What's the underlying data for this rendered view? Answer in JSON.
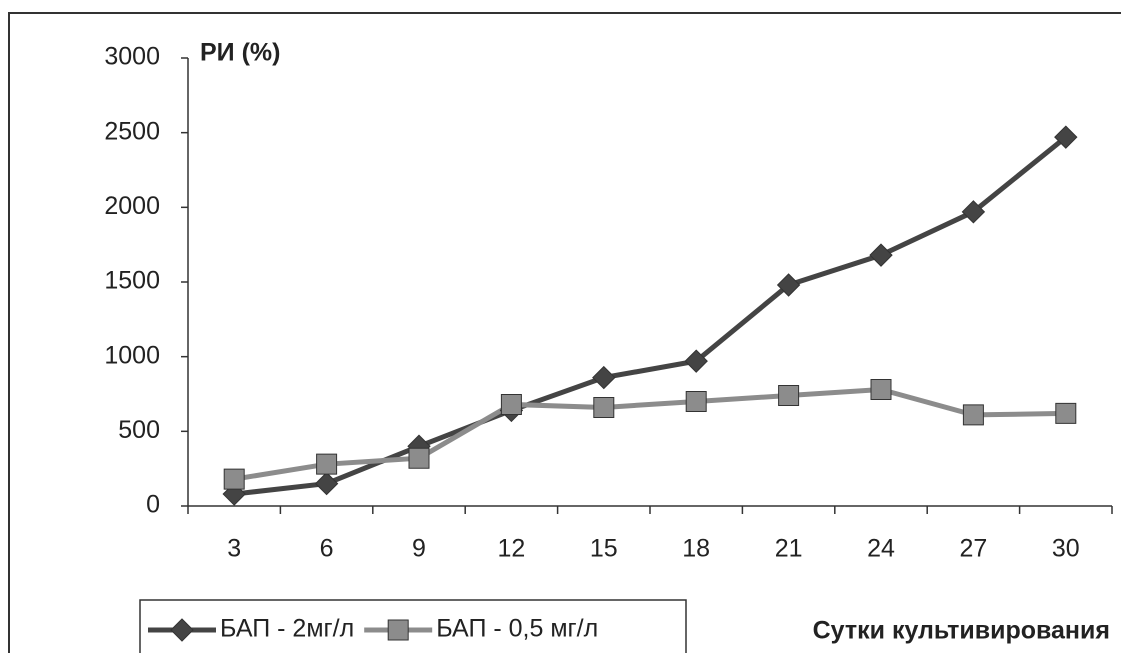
{
  "chart_data": {
    "type": "line",
    "y_label": "РИ (%)",
    "x_label": "Сутки культивирования",
    "categories": [
      "3",
      "6",
      "9",
      "12",
      "15",
      "18",
      "21",
      "24",
      "27",
      "30"
    ],
    "series": [
      {
        "name": "БАП - 2мг/л",
        "color": "#444444",
        "marker": "diamond",
        "values": [
          80,
          150,
          400,
          640,
          860,
          970,
          1480,
          1680,
          1970,
          2470
        ]
      },
      {
        "name": "БАП - 0,5 мг/л",
        "color": "#8c8c8c",
        "marker": "square",
        "values": [
          180,
          280,
          320,
          680,
          660,
          700,
          740,
          780,
          610,
          620
        ]
      }
    ],
    "ylim": [
      0,
      3000
    ],
    "yticks": [
      0,
      500,
      1000,
      1500,
      2000,
      2500,
      3000
    ]
  }
}
